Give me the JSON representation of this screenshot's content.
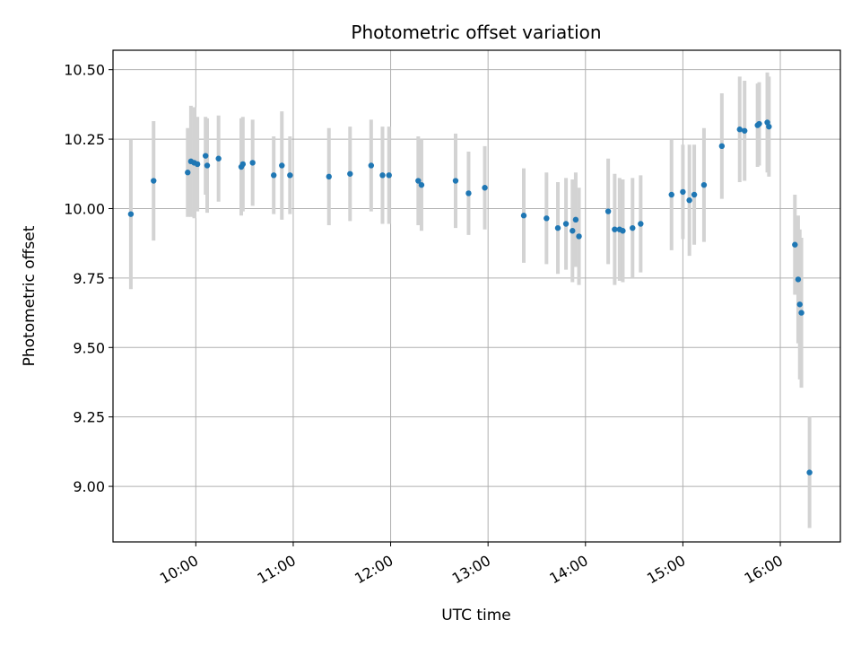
{
  "chart_data": {
    "type": "scatter",
    "title": "Photometric offset variation",
    "xlabel": "UTC time",
    "ylabel": "Photometric offset",
    "grid": true,
    "legend": "none",
    "xlim": [
      "09:09",
      "16:37"
    ],
    "ylim": [
      8.8,
      10.57
    ],
    "x_ticks": [
      "10:00",
      "11:00",
      "12:00",
      "13:00",
      "14:00",
      "15:00",
      "16:00"
    ],
    "y_ticks": [
      "9.00",
      "9.25",
      "9.50",
      "9.75",
      "10.00",
      "10.25",
      "10.50"
    ],
    "colors": {
      "marker": "#1f77b4",
      "errorbar": "#d3d3d3",
      "grid": "#b0b0b0"
    },
    "series": [
      {
        "x": [
          "09:20",
          "09:34",
          "09:55",
          "09:57",
          "09:59",
          "10:01",
          "10:06",
          "10:07",
          "10:14",
          "10:28",
          "10:29",
          "10:35",
          "10:48",
          "10:53",
          "10:58",
          "11:22",
          "11:35",
          "11:48",
          "11:55",
          "11:59",
          "12:17",
          "12:19",
          "12:40",
          "12:48",
          "12:58",
          "13:22",
          "13:36",
          "13:43",
          "13:48",
          "13:52",
          "13:54",
          "13:56",
          "14:14",
          "14:18",
          "14:21",
          "14:23",
          "14:29",
          "14:34",
          "14:53",
          "15:00",
          "15:04",
          "15:07",
          "15:13",
          "15:24",
          "15:35",
          "15:38",
          "15:46",
          "15:47",
          "15:52",
          "15:53",
          "16:09",
          "16:11",
          "16:12",
          "16:13",
          "16:18"
        ],
        "y": [
          9.98,
          10.1,
          10.13,
          10.17,
          10.165,
          10.16,
          10.19,
          10.155,
          10.18,
          10.15,
          10.16,
          10.165,
          10.12,
          10.155,
          10.12,
          10.115,
          10.125,
          10.155,
          10.12,
          10.12,
          10.1,
          10.085,
          10.1,
          10.055,
          10.075,
          9.975,
          9.965,
          9.93,
          9.945,
          9.92,
          9.96,
          9.9,
          9.99,
          9.925,
          9.925,
          9.92,
          9.93,
          9.945,
          10.05,
          10.06,
          10.03,
          10.05,
          10.085,
          10.225,
          10.285,
          10.28,
          10.3,
          10.305,
          10.31,
          10.295,
          9.87,
          9.745,
          9.655,
          9.625,
          9.05
        ],
        "error": [
          0.27,
          0.215,
          0.16,
          0.2,
          0.2,
          0.17,
          0.14,
          0.17,
          0.155,
          0.175,
          0.17,
          0.155,
          0.14,
          0.195,
          0.14,
          0.175,
          0.17,
          0.165,
          0.175,
          0.175,
          0.16,
          0.165,
          0.17,
          0.15,
          0.15,
          0.17,
          0.165,
          0.165,
          0.165,
          0.185,
          0.17,
          0.175,
          0.19,
          0.2,
          0.185,
          0.185,
          0.18,
          0.175,
          0.2,
          0.17,
          0.2,
          0.18,
          0.205,
          0.19,
          0.19,
          0.18,
          0.15,
          0.15,
          0.18,
          0.18,
          0.18,
          0.23,
          0.27,
          0.27,
          0.2
        ]
      }
    ]
  }
}
